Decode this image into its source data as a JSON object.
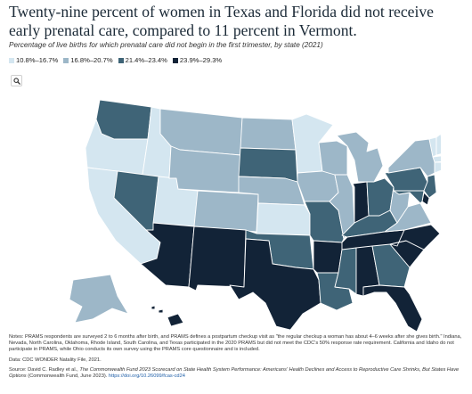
{
  "title": "Twenty-nine percent of women in Texas and Florida did not receive early prenatal care, compared to 11 percent in Vermont.",
  "subtitle": "Percentage of live births for which prenatal care did not begin in the first trimester, by state (2021)",
  "legend": [
    {
      "label": "10.8%–16.7%",
      "color": "#d4e6f0"
    },
    {
      "label": "16.8%–20.7%",
      "color": "#9db7c8"
    },
    {
      "label": "21.4%–23.4%",
      "color": "#3f6477"
    },
    {
      "label": "23.9%–29.3%",
      "color": "#122337"
    }
  ],
  "zoom_icon": "search-icon",
  "notes": {
    "prams": "Notes: PRAMS respondents are surveyed 2 to 6 months after birth, and PRAMS defines a postpartum checkup visit as \"the regular checkup a woman has about 4–6 weeks after she gives birth.\" Indiana, Nevada, North Carolina, Oklahoma, Rhode Island, South Carolina, and Texas participated in the 2020 PRAMS but did not meet the CDC's 50% response rate requirement. California and Idaho do not participate in PRAMS, while Ohio conducts its own survey using the PRAMS core questionnaire and is included.",
    "data": "Data: CDC WONDER Natality File, 2021.",
    "source_prefix": "Source: David C. Radley et al., ",
    "source_title": "The Commonwealth Fund 2023 Scorecard on State Health System Performance: Americans' Health Declines and Access to Reproductive Care Shrinks, But States Have Options",
    "source_suffix": " (Commonwealth Fund, June 2023). ",
    "source_link": "https://doi.org/10.26099/fcas-cd24"
  },
  "states": [
    {
      "name": "WA",
      "tier": 2
    },
    {
      "name": "OR",
      "tier": 0
    },
    {
      "name": "CA",
      "tier": 0
    },
    {
      "name": "ID",
      "tier": 0
    },
    {
      "name": "NV",
      "tier": 2
    },
    {
      "name": "UT",
      "tier": 0
    },
    {
      "name": "AZ",
      "tier": 3
    },
    {
      "name": "MT",
      "tier": 1
    },
    {
      "name": "WY",
      "tier": 1
    },
    {
      "name": "CO",
      "tier": 1
    },
    {
      "name": "NM",
      "tier": 3
    },
    {
      "name": "ND",
      "tier": 1
    },
    {
      "name": "SD",
      "tier": 2
    },
    {
      "name": "NE",
      "tier": 1
    },
    {
      "name": "KS",
      "tier": 0
    },
    {
      "name": "OK",
      "tier": 2
    },
    {
      "name": "TX",
      "tier": 3
    },
    {
      "name": "MN",
      "tier": 0
    },
    {
      "name": "IA",
      "tier": 1
    },
    {
      "name": "MO",
      "tier": 2
    },
    {
      "name": "AR",
      "tier": 3
    },
    {
      "name": "LA",
      "tier": 2
    },
    {
      "name": "WI",
      "tier": 1
    },
    {
      "name": "IL",
      "tier": 1
    },
    {
      "name": "MI",
      "tier": 1
    },
    {
      "name": "IN",
      "tier": 3
    },
    {
      "name": "OH",
      "tier": 2
    },
    {
      "name": "KY",
      "tier": 2
    },
    {
      "name": "TN",
      "tier": 3
    },
    {
      "name": "MS",
      "tier": 2
    },
    {
      "name": "AL",
      "tier": 3
    },
    {
      "name": "GA",
      "tier": 2
    },
    {
      "name": "FL",
      "tier": 3
    },
    {
      "name": "SC",
      "tier": 3
    },
    {
      "name": "NC",
      "tier": 3
    },
    {
      "name": "VA",
      "tier": 1
    },
    {
      "name": "WV",
      "tier": 1
    },
    {
      "name": "PA",
      "tier": 2
    },
    {
      "name": "NY",
      "tier": 1
    },
    {
      "name": "VT",
      "tier": 0
    },
    {
      "name": "NH",
      "tier": 0
    },
    {
      "name": "ME",
      "tier": 0
    },
    {
      "name": "MA",
      "tier": 0
    },
    {
      "name": "CT",
      "tier": 0
    },
    {
      "name": "RI",
      "tier": 0
    },
    {
      "name": "NJ",
      "tier": 2
    },
    {
      "name": "DE",
      "tier": 3
    },
    {
      "name": "MD",
      "tier": 2
    },
    {
      "name": "AK",
      "tier": 1
    },
    {
      "name": "HI",
      "tier": 3
    }
  ]
}
